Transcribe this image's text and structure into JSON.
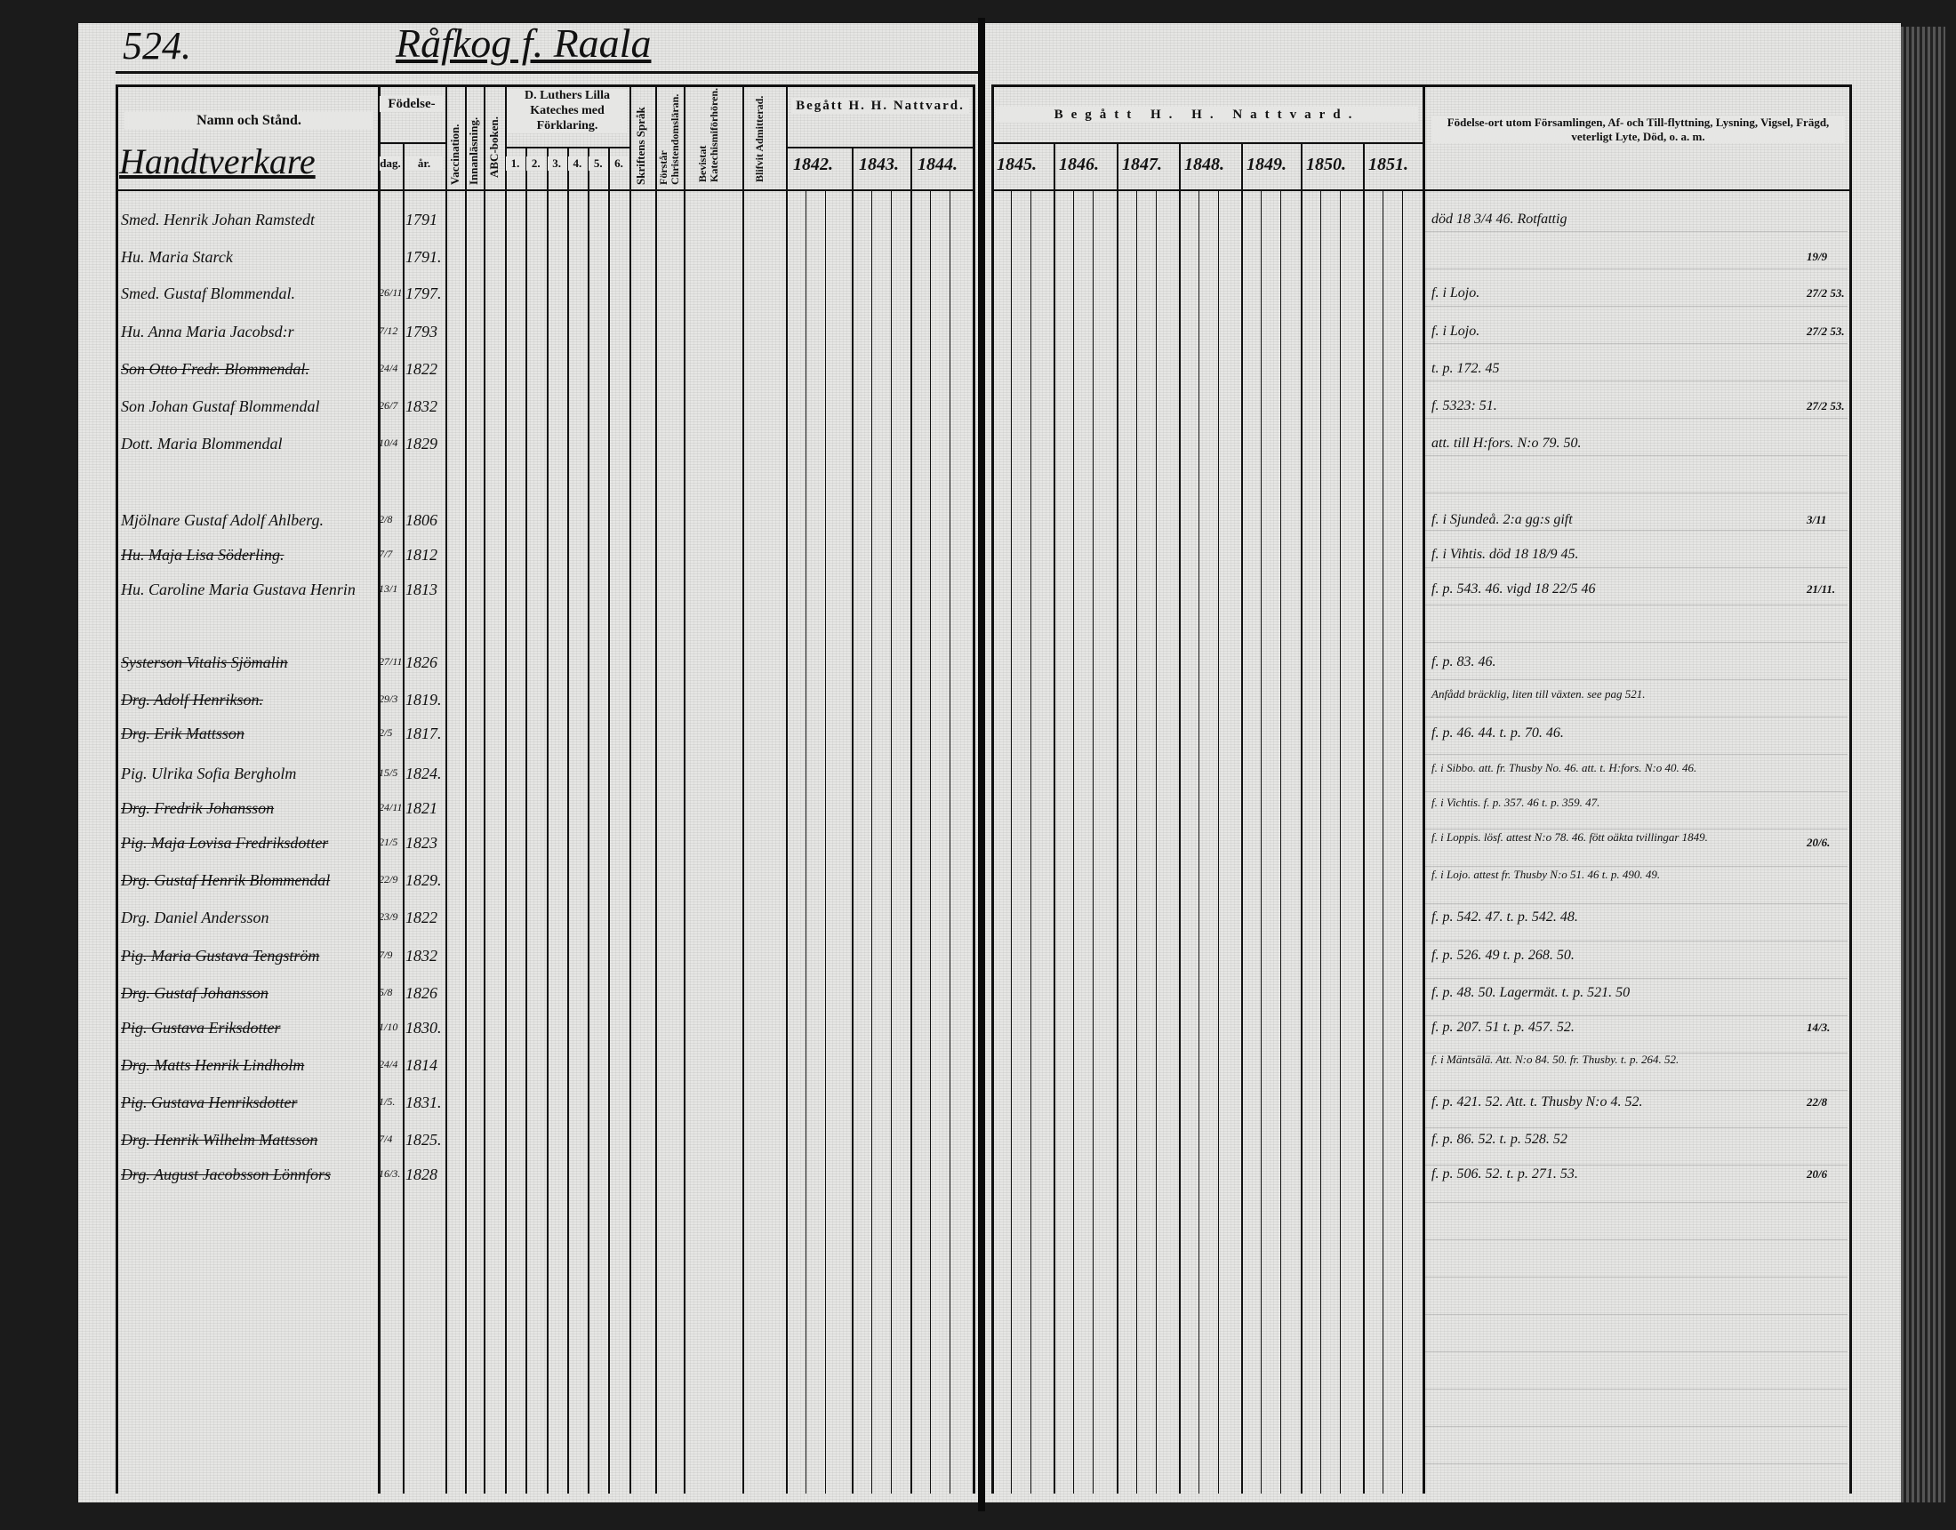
{
  "page_number": "524.",
  "page_title": "Råfkog f. Raala",
  "section_label": "Handtverkare",
  "headers": {
    "name": "Namn och Stånd.",
    "birth": "Födelse-",
    "birth_day": "dag.",
    "birth_year": "år.",
    "vaccination": "Vaccination.",
    "reading": "Innanläsning.",
    "abc": "ABC-boken.",
    "catechism": "D. Luthers Lilla Kateches med Förklaring.",
    "catechism_parts": [
      "1.",
      "2.",
      "3.",
      "4.",
      "5.",
      "6."
    ],
    "scripture": "Skriftens Språk",
    "understands": "Förstår Christendomsläran.",
    "attended": "Bevistat Katechismiförhören.",
    "admitted": "Blifvit Admitterad.",
    "communion_left": "Begått H. H. Nattvard.",
    "communion_right": "Begått H. H. Nattvard.",
    "years_left": [
      "1842.",
      "1843.",
      "1844."
    ],
    "years_right": [
      "1845.",
      "1846.",
      "1847.",
      "1848.",
      "1849.",
      "1850.",
      "1851."
    ],
    "remarks": "Födelse-ort utom Församlingen, Af- och Till-flyttning, Lysning, Vigsel, Frägd, veterligt Lyte, Död, o. a. m."
  },
  "rows": [
    {
      "name": "Smed. Henrik Johan Ramstedt",
      "day": "",
      "year": "1791",
      "note": "död 18 3/4 46. Rotfattig",
      "margin": "",
      "struck": false
    },
    {
      "name": "Hu. Maria Starck",
      "day": "",
      "year": "1791.",
      "note": "",
      "margin": "19/9",
      "struck": false
    },
    {
      "name": "Smed. Gustaf Blommendal.",
      "day": "26/11",
      "year": "1797.",
      "note": "f. i Lojo.",
      "margin": "27/2 53.",
      "struck": false
    },
    {
      "name": "Hu. Anna Maria Jacobsd:r",
      "day": "7/12",
      "year": "1793",
      "note": "f. i Lojo.",
      "margin": "27/2 53.",
      "struck": false
    },
    {
      "name": "Son Otto Fredr. Blommendal.",
      "day": "24/4",
      "year": "1822",
      "note": "t. p. 172. 45",
      "margin": "",
      "struck": true
    },
    {
      "name": "Son Johan Gustaf Blommendal",
      "day": "26/7",
      "year": "1832",
      "note": "f. 5323: 51.",
      "margin": "27/2 53.",
      "struck": false
    },
    {
      "name": "Dott. Maria Blommendal",
      "day": "10/4",
      "year": "1829",
      "note": "att. till H:fors. N:o 79. 50.",
      "margin": "",
      "struck": false
    },
    {
      "name": "Mjölnare Gustaf Adolf Ahlberg.",
      "day": "2/8",
      "year": "1806",
      "note": "f. i Sjundeå. 2:a gg:s gift",
      "margin": "3/11",
      "struck": false
    },
    {
      "name": "Hu. Maja Lisa Söderling.",
      "day": "7/7",
      "year": "1812",
      "note": "f. i Vihtis. död 18 18/9 45.",
      "margin": "",
      "struck": true
    },
    {
      "name": "Hu. Caroline Maria Gustava Henrin",
      "day": "13/1",
      "year": "1813",
      "note": "f. p. 543. 46. vigd 18 22/5 46",
      "margin": "21/11.",
      "struck": false
    },
    {
      "name": "Systerson Vitalis Sjömalin",
      "day": "27/11",
      "year": "1826",
      "note": "f. p. 83. 46.",
      "margin": "",
      "struck": true
    },
    {
      "name": "Drg. Adolf Henrikson.",
      "day": "29/3",
      "year": "1819.",
      "note": "Anfådd bräcklig, liten till växten. see pag 521.",
      "margin": "",
      "struck": true
    },
    {
      "name": "Drg. Erik Mattsson",
      "day": "2/5",
      "year": "1817.",
      "note": "f. p. 46. 44. t. p. 70. 46.",
      "margin": "",
      "struck": true
    },
    {
      "name": "Pig. Ulrika Sofia Bergholm",
      "day": "15/5",
      "year": "1824.",
      "note": "f. i Sibbo. att. fr. Thusby No. 46. att. t. H:fors. N:o 40. 46.",
      "margin": "",
      "struck": false
    },
    {
      "name": "Drg. Fredrik Johansson",
      "day": "24/11",
      "year": "1821",
      "note": "f. i Vichtis. f. p. 357. 46 t. p. 359. 47.",
      "margin": "",
      "struck": true
    },
    {
      "name": "Pig. Maja Lovisa Fredriksdotter",
      "day": "21/5",
      "year": "1823",
      "note": "f. i Loppis. lösf. attest N:o 78. 46. fött oäkta tvillingar 1849.",
      "margin": "20/6.",
      "struck": true
    },
    {
      "name": "Drg. Gustaf Henrik Blommendal",
      "day": "22/9",
      "year": "1829.",
      "note": "f. i Lojo. attest fr. Thusby N:o 51. 46 t. p. 490. 49.",
      "margin": "",
      "struck": true
    },
    {
      "name": "Drg. Daniel Andersson",
      "day": "23/9",
      "year": "1822",
      "note": "f. p. 542. 47. t. p. 542. 48.",
      "margin": "",
      "struck": false
    },
    {
      "name": "Pig. Maria Gustava Tengström",
      "day": "7/9",
      "year": "1832",
      "note": "f. p. 526. 49 t. p. 268. 50.",
      "margin": "",
      "struck": true
    },
    {
      "name": "Drg. Gustaf Johansson",
      "day": "5/8",
      "year": "1826",
      "note": "f. p. 48. 50. Lagermät. t. p. 521. 50",
      "margin": "",
      "struck": true
    },
    {
      "name": "Pig. Gustava Eriksdotter",
      "day": "1/10",
      "year": "1830.",
      "note": "f. p. 207. 51 t. p. 457. 52.",
      "margin": "14/3.",
      "struck": true
    },
    {
      "name": "Drg. Matts Henrik Lindholm",
      "day": "24/4",
      "year": "1814",
      "note": "f. i Mäntsälä. Att. N:o 84. 50. fr. Thusby. t. p. 264. 52.",
      "margin": "",
      "struck": true
    },
    {
      "name": "Pig. Gustava Henriksdotter",
      "day": "1/5.",
      "year": "1831.",
      "note": "f. p. 421. 52. Att. t. Thusby N:o 4. 52.",
      "margin": "22/8",
      "struck": true
    },
    {
      "name": "Drg. Henrik Wilhelm Mattsson",
      "day": "7/4",
      "year": "1825.",
      "note": "f. p. 86. 52. t. p. 528. 52",
      "margin": "",
      "struck": true
    },
    {
      "name": "Drg. August Jacobsson Lönnfors",
      "day": "16/3.",
      "year": "1828",
      "note": "f. p. 506. 52. t. p. 271. 53.",
      "margin": "20/6",
      "struck": true
    }
  ]
}
